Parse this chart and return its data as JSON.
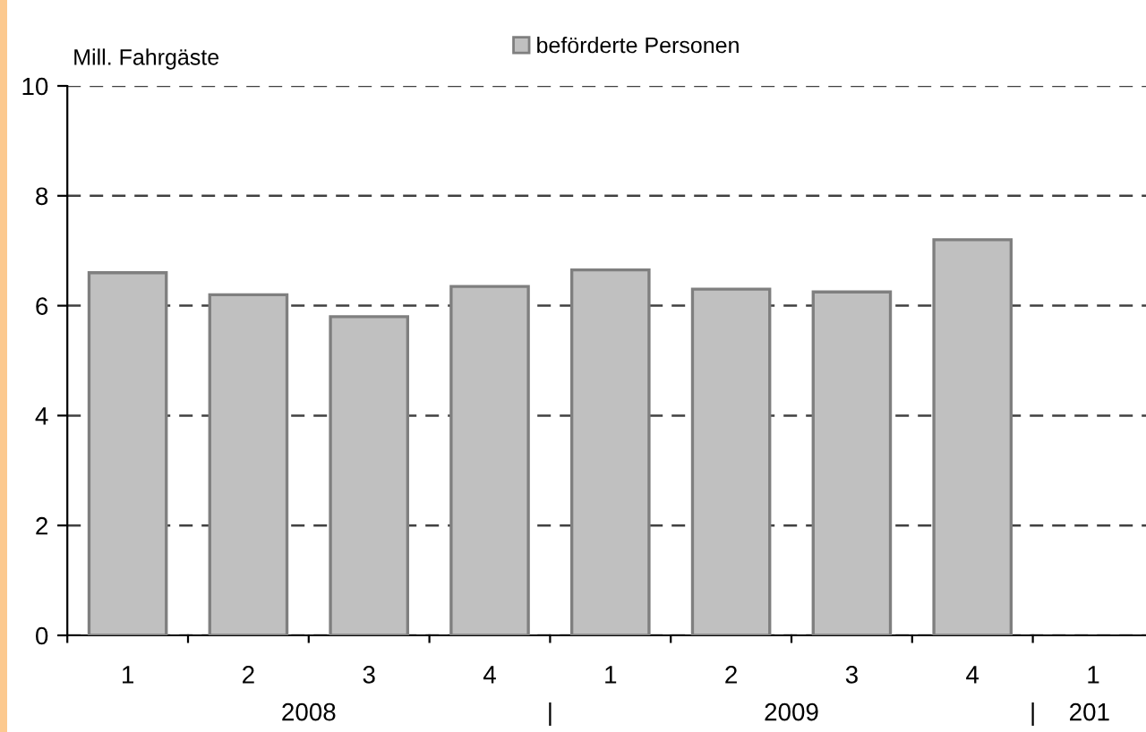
{
  "chart_data": {
    "type": "bar",
    "ylabel": "Mill. Fahrgäste",
    "categories": [
      "1",
      "2",
      "3",
      "4",
      "1",
      "2",
      "3",
      "4",
      "1"
    ],
    "series": [
      {
        "name": "beförderte Personen",
        "color": "#c0c0c0",
        "values": [
          6.6,
          6.2,
          5.8,
          6.35,
          6.65,
          6.3,
          6.25,
          7.2,
          null
        ]
      }
    ],
    "ylim": [
      0,
      10
    ],
    "yticks": [
      0,
      2,
      4,
      6,
      8,
      10
    ],
    "grid": "y",
    "line_style": "dashed",
    "legend": "top",
    "annotations": [
      "2008",
      "|",
      "2009",
      "|",
      "201"
    ]
  }
}
